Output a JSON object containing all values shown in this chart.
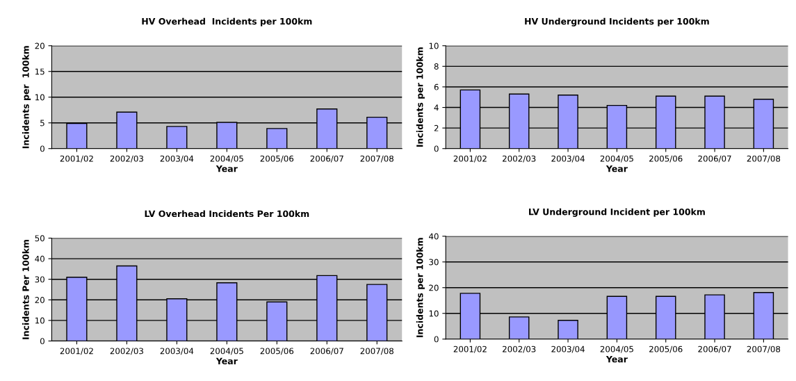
{
  "chart_data": [
    {
      "type": "bar",
      "title": "HV Overhead  Incidents per 100km",
      "xlabel": "Year",
      "ylabel": "Incidents per  100km",
      "categories": [
        "2001/02",
        "2002/03",
        "2003/04",
        "2004/05",
        "2005/06",
        "2006/07",
        "2007/08"
      ],
      "values": [
        4.9,
        7.1,
        4.3,
        5.1,
        3.9,
        7.7,
        6.1
      ],
      "color": "#9999ff",
      "ylim": [
        0,
        20
      ],
      "yticks": [
        0,
        5,
        10,
        15,
        20
      ],
      "grid": "y"
    },
    {
      "type": "bar",
      "title": "HV Underground Incidents per 100km",
      "xlabel": "Year",
      "ylabel": "Incidents per 100km",
      "categories": [
        "2001/02",
        "2002/03",
        "2003/04",
        "2004/05",
        "2005/06",
        "2006/07",
        "2007/08"
      ],
      "values": [
        5.7,
        5.3,
        5.2,
        4.2,
        5.1,
        5.1,
        4.8
      ],
      "color": "#9999ff",
      "ylim": [
        0,
        10
      ],
      "yticks": [
        0,
        2,
        4,
        6,
        8,
        10
      ],
      "grid": "y"
    },
    {
      "type": "bar",
      "title": "LV Overhead Incidents Per 100km",
      "xlabel": "Year",
      "ylabel": "Incidents Per 100km",
      "categories": [
        "2001/02",
        "2002/03",
        "2003/04",
        "2004/05",
        "2005/06",
        "2006/07",
        "2007/08"
      ],
      "values": [
        31,
        36.5,
        20.5,
        28.3,
        19,
        31.8,
        27.5
      ],
      "color": "#9999ff",
      "ylim": [
        0,
        50
      ],
      "yticks": [
        0,
        10,
        20,
        30,
        40,
        50
      ],
      "grid": "y"
    },
    {
      "type": "bar",
      "title": "LV Underground Incident per 100km",
      "xlabel": "Year",
      "ylabel": "Incidents per 100km",
      "categories": [
        "2001/02",
        "2002/03",
        "2003/04",
        "2004/05",
        "2005/06",
        "2006/07",
        "2007/08"
      ],
      "values": [
        17.8,
        8.6,
        7.3,
        16.6,
        16.6,
        17.2,
        18.1
      ],
      "color": "#9999ff",
      "ylim": [
        0,
        40
      ],
      "yticks": [
        0,
        10,
        20,
        30,
        40
      ],
      "grid": "y"
    }
  ]
}
